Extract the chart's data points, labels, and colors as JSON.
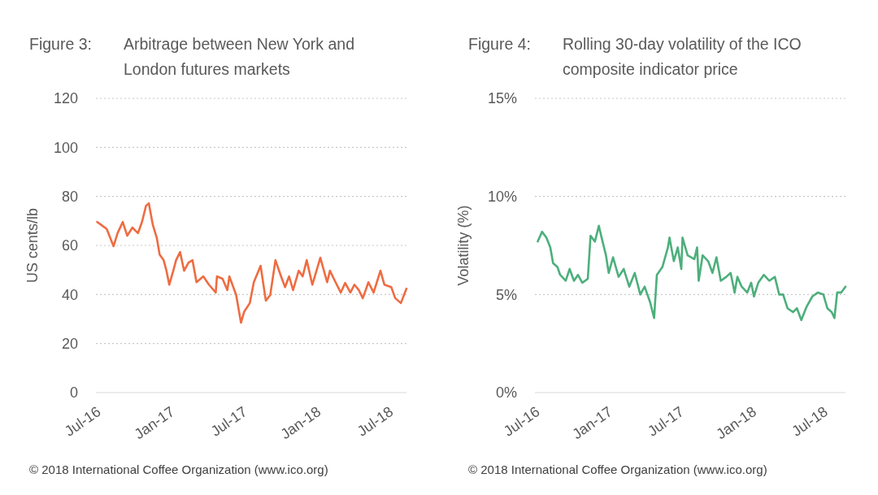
{
  "chart_data": [
    {
      "type": "line",
      "title": "Figure 3: Arbitrage between New York and London futures markets",
      "ylabel": "US cents/lb",
      "ylim": [
        0,
        120
      ],
      "yticks": [
        0,
        20,
        40,
        60,
        80,
        100,
        120
      ],
      "xlim": [
        "2016-07-01",
        "2018-08-15"
      ],
      "xticks": [
        {
          "value": "2016-07-01",
          "label": "Jul-16"
        },
        {
          "value": "2017-01-01",
          "label": "Jan-17"
        },
        {
          "value": "2017-07-01",
          "label": "Jul-17"
        },
        {
          "value": "2018-01-01",
          "label": "Jan-18"
        },
        {
          "value": "2018-07-01",
          "label": "Jul-18"
        }
      ],
      "grid": "y",
      "marker": "none",
      "line_style": "solid",
      "annotations": [
        "© 2018 International Coffee Organization (www.ico.org)"
      ],
      "series": [
        {
          "color": "#ee6c42",
          "x": [
            "2016-07-04",
            "2016-07-14",
            "2016-07-28",
            "2016-08-14",
            "2016-08-24",
            "2016-09-06",
            "2016-09-17",
            "2016-09-30",
            "2016-10-14",
            "2016-10-24",
            "2016-11-03",
            "2016-11-10",
            "2016-11-20",
            "2016-11-30",
            "2016-12-07",
            "2016-12-17",
            "2016-12-24",
            "2016-12-31",
            "2017-01-10",
            "2017-01-17",
            "2017-01-27",
            "2017-02-06",
            "2017-02-17",
            "2017-02-27",
            "2017-03-09",
            "2017-03-26",
            "2017-04-09",
            "2017-04-26",
            "2017-04-29",
            "2017-05-13",
            "2017-05-25",
            "2017-05-30",
            "2017-06-16",
            "2017-06-28",
            "2017-07-06",
            "2017-07-20",
            "2017-07-30",
            "2017-08-16",
            "2017-08-29",
            "2017-09-09",
            "2017-09-22",
            "2017-10-06",
            "2017-10-16",
            "2017-10-26",
            "2017-11-05",
            "2017-11-19",
            "2017-11-29",
            "2017-12-09",
            "2017-12-23",
            "2018-01-12",
            "2018-01-29",
            "2018-02-05",
            "2018-02-19",
            "2018-03-04",
            "2018-03-15",
            "2018-03-28",
            "2018-04-07",
            "2018-04-18",
            "2018-04-28",
            "2018-05-12",
            "2018-05-25",
            "2018-06-11",
            "2018-06-21",
            "2018-07-08",
            "2018-07-18",
            "2018-08-01",
            "2018-08-15"
          ],
          "values": [
            69.6,
            68.4,
            66.7,
            59.7,
            65,
            69.6,
            64,
            67.3,
            65,
            69.6,
            76.2,
            77.2,
            68.4,
            63,
            56.3,
            54,
            49.7,
            44,
            49.7,
            54,
            57.3,
            49.7,
            53,
            54,
            45,
            47.4,
            44,
            40.8,
            47.4,
            46.4,
            41.8,
            47.4,
            39.8,
            28.5,
            33,
            36.5,
            45,
            51.7,
            37.5,
            39.8,
            54,
            47.4,
            43,
            47.4,
            41.8,
            49.7,
            47.4,
            54,
            44,
            55,
            45,
            49.7,
            45,
            40.8,
            44.7,
            40.8,
            44,
            41.8,
            38.5,
            45,
            40.8,
            49.7,
            44,
            43,
            38.5,
            36.5,
            42.4
          ]
        }
      ]
    },
    {
      "type": "line",
      "title": "Figure 4: Rolling 30-day volatility of the ICO composite indicator price",
      "ylabel": "Volatility (%)",
      "ylim": [
        0,
        15
      ],
      "yticks": [
        {
          "value": 0,
          "label": "0%"
        },
        {
          "value": 5,
          "label": "5%"
        },
        {
          "value": 10,
          "label": "10%"
        },
        {
          "value": 15,
          "label": "15%"
        }
      ],
      "xlim": [
        "2016-07-01",
        "2018-08-27"
      ],
      "xticks": [
        {
          "value": "2016-07-01",
          "label": "Jul-16"
        },
        {
          "value": "2017-01-01",
          "label": "Jan-17"
        },
        {
          "value": "2017-07-01",
          "label": "Jul-17"
        },
        {
          "value": "2018-01-01",
          "label": "Jan-18"
        },
        {
          "value": "2018-07-01",
          "label": "Jul-18"
        }
      ],
      "grid": "y",
      "marker": "none",
      "line_style": "solid",
      "annotations": [
        "© 2018 International Coffee Organization (www.ico.org)"
      ],
      "series": [
        {
          "color": "#4daf7c",
          "x": [
            "2016-07-08",
            "2016-07-19",
            "2016-07-30",
            "2016-08-09",
            "2016-08-16",
            "2016-08-27",
            "2016-09-03",
            "2016-09-17",
            "2016-09-27",
            "2016-10-08",
            "2016-10-18",
            "2016-10-29",
            "2016-11-12",
            "2016-11-19",
            "2016-11-30",
            "2016-12-10",
            "2016-12-17",
            "2016-12-28",
            "2017-01-04",
            "2017-01-15",
            "2017-01-29",
            "2017-02-11",
            "2017-02-25",
            "2017-03-11",
            "2017-03-25",
            "2017-04-05",
            "2017-04-19",
            "2017-04-29",
            "2017-05-06",
            "2017-05-20",
            "2017-06-03",
            "2017-06-07",
            "2017-06-18",
            "2017-06-28",
            "2017-07-07",
            "2017-07-10",
            "2017-07-23",
            "2017-08-09",
            "2017-08-16",
            "2017-08-20",
            "2017-08-30",
            "2017-09-13",
            "2017-09-24",
            "2017-10-04",
            "2017-10-15",
            "2017-10-29",
            "2017-11-09",
            "2017-11-19",
            "2017-11-26",
            "2017-12-07",
            "2017-12-21",
            "2017-12-31",
            "2018-01-07",
            "2018-01-18",
            "2018-02-01",
            "2018-02-15",
            "2018-03-01",
            "2018-03-12",
            "2018-03-22",
            "2018-04-02",
            "2018-04-16",
            "2018-04-26",
            "2018-05-07",
            "2018-05-21",
            "2018-06-04",
            "2018-06-18",
            "2018-07-02",
            "2018-07-12",
            "2018-07-23",
            "2018-07-30",
            "2018-08-06",
            "2018-08-16",
            "2018-08-27"
          ],
          "values": [
            7.7,
            8.2,
            7.9,
            7.4,
            6.6,
            6.4,
            6.0,
            5.7,
            6.3,
            5.7,
            6.0,
            5.6,
            5.8,
            8.0,
            7.7,
            8.5,
            7.9,
            7.0,
            6.1,
            6.9,
            5.9,
            6.3,
            5.4,
            6.1,
            5.0,
            5.4,
            4.6,
            3.8,
            6.0,
            6.4,
            7.4,
            7.9,
            6.7,
            7.4,
            6.3,
            7.9,
            7.0,
            6.8,
            7.4,
            5.7,
            7.0,
            6.7,
            6.1,
            6.9,
            5.7,
            5.9,
            6.1,
            5.1,
            5.9,
            5.4,
            5.1,
            5.6,
            4.9,
            5.6,
            6.0,
            5.7,
            5.9,
            5.0,
            5.0,
            4.3,
            4.1,
            4.3,
            3.7,
            4.4,
            4.9,
            5.1,
            5.0,
            4.3,
            4.1,
            3.8,
            5.1,
            5.1,
            5.4
          ]
        }
      ]
    }
  ]
}
